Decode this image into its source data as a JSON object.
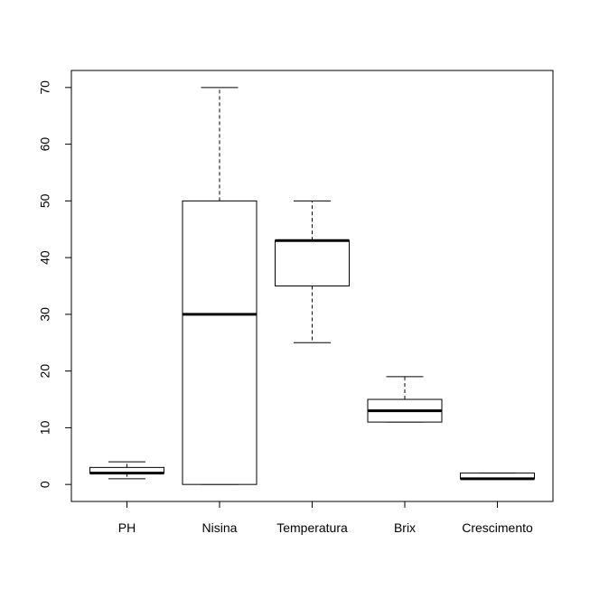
{
  "chart_data": {
    "type": "boxplot",
    "title": "",
    "xlabel": "",
    "ylabel": "",
    "ylim": [
      -3,
      73
    ],
    "yticks": [
      0,
      10,
      20,
      30,
      40,
      50,
      60,
      70
    ],
    "ytick_labels": [
      "0",
      "10",
      "20",
      "30",
      "40",
      "50",
      "60",
      "70"
    ],
    "grid": false,
    "legend": "none",
    "categories": [
      "PH",
      "Nisina",
      "Temperatura",
      "Brix",
      "Crescimento"
    ],
    "boxes": [
      {
        "label": "PH",
        "min": 1,
        "q1": 2,
        "median": 2,
        "q3": 3,
        "max": 4
      },
      {
        "label": "Nisina",
        "min": 0,
        "q1": 0,
        "median": 30,
        "q3": 50,
        "max": 70
      },
      {
        "label": "Temperatura",
        "min": 25,
        "q1": 35,
        "median": 43,
        "q3": 43,
        "max": 50
      },
      {
        "label": "Brix",
        "min": 11,
        "q1": 11,
        "median": 13,
        "q3": 15,
        "max": 19
      },
      {
        "label": "Crescimento",
        "min": 1,
        "q1": 1,
        "median": 1,
        "q3": 2,
        "max": 2
      }
    ],
    "colors": {
      "stroke": "#000000",
      "fill": "#ffffff"
    }
  }
}
